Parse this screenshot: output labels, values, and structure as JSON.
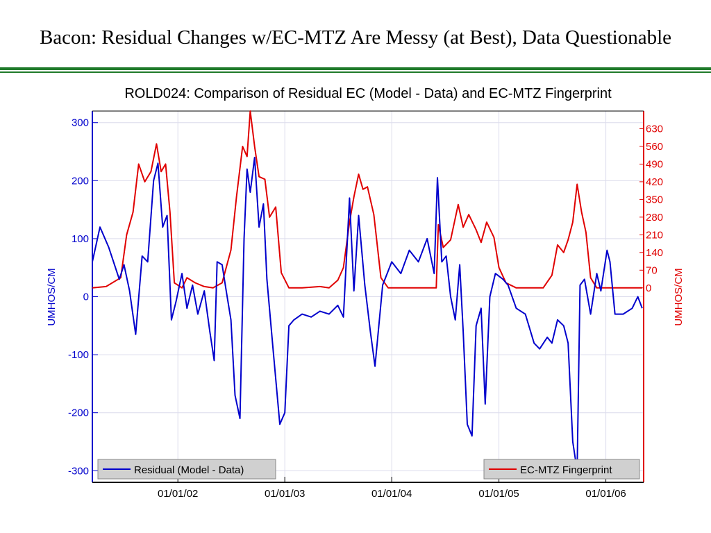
{
  "slide": {
    "title": "Bacon: Residual Changes w/EC-MTZ Are Messy (at Best), Data Questionable"
  },
  "chart_data": {
    "type": "line",
    "title": "ROLD024: Comparison of Residual EC (Model - Data) and EC-MTZ Fingerprint",
    "grid": true,
    "xlabel": "",
    "x_tick_labels": [
      "01/01/02",
      "01/01/03",
      "01/01/04",
      "01/01/05",
      "01/01/06"
    ],
    "xlim": [
      "2001-03-15",
      "2006-05-10"
    ],
    "left_axis": {
      "label": "UMHOS/CM",
      "color": "#0000cc",
      "ylim": [
        -320,
        320
      ],
      "ticks": [
        300,
        200,
        100,
        0,
        -100,
        -200,
        -300
      ]
    },
    "right_axis": {
      "label": "UMHOS/CM",
      "color": "#e00000",
      "ylim": [
        -770,
        700
      ],
      "ticks": [
        630,
        560,
        490,
        420,
        350,
        280,
        210,
        140,
        70,
        0
      ]
    },
    "legend": [
      {
        "label": "Residual (Model - Data)",
        "position": "bottom-left",
        "color": "#0000cc"
      },
      {
        "label": "EC-MTZ Fingerprint",
        "position": "bottom-right",
        "color": "#e00000"
      }
    ],
    "series": [
      {
        "name": "Residual (Model - Data)",
        "axis": "left",
        "color": "#0000cc",
        "points": [
          [
            "2001-03-15",
            60
          ],
          [
            "2001-04-10",
            120
          ],
          [
            "2001-05-10",
            85
          ],
          [
            "2001-06-15",
            30
          ],
          [
            "2001-07-01",
            55
          ],
          [
            "2001-07-20",
            10
          ],
          [
            "2001-08-10",
            -65
          ],
          [
            "2001-09-01",
            70
          ],
          [
            "2001-09-20",
            60
          ],
          [
            "2001-10-10",
            200
          ],
          [
            "2001-10-25",
            230
          ],
          [
            "2001-11-10",
            120
          ],
          [
            "2001-11-25",
            140
          ],
          [
            "2001-12-10",
            -40
          ],
          [
            "2001-12-25",
            -10
          ],
          [
            "2002-01-15",
            40
          ],
          [
            "2002-02-01",
            -20
          ],
          [
            "2002-02-20",
            20
          ],
          [
            "2002-03-10",
            -30
          ],
          [
            "2002-04-01",
            10
          ],
          [
            "2002-04-20",
            -60
          ],
          [
            "2002-05-05",
            -110
          ],
          [
            "2002-05-15",
            60
          ],
          [
            "2002-06-01",
            55
          ],
          [
            "2002-06-15",
            10
          ],
          [
            "2002-07-01",
            -40
          ],
          [
            "2002-07-15",
            -170
          ],
          [
            "2002-08-01",
            -210
          ],
          [
            "2002-08-15",
            100
          ],
          [
            "2002-08-25",
            220
          ],
          [
            "2002-09-05",
            180
          ],
          [
            "2002-09-20",
            240
          ],
          [
            "2002-10-05",
            120
          ],
          [
            "2002-10-20",
            160
          ],
          [
            "2002-11-01",
            30
          ],
          [
            "2002-11-20",
            -80
          ],
          [
            "2002-12-15",
            -220
          ],
          [
            "2003-01-01",
            -200
          ],
          [
            "2003-01-15",
            -50
          ],
          [
            "2003-02-01",
            -40
          ],
          [
            "2003-03-01",
            -30
          ],
          [
            "2003-04-01",
            -35
          ],
          [
            "2003-05-01",
            -25
          ],
          [
            "2003-06-01",
            -30
          ],
          [
            "2003-07-01",
            -15
          ],
          [
            "2003-07-20",
            -35
          ],
          [
            "2003-08-10",
            170
          ],
          [
            "2003-08-25",
            10
          ],
          [
            "2003-09-10",
            140
          ],
          [
            "2003-10-01",
            20
          ],
          [
            "2003-10-20",
            -60
          ],
          [
            "2003-11-05",
            -120
          ],
          [
            "2003-12-01",
            20
          ],
          [
            "2004-01-01",
            60
          ],
          [
            "2004-02-01",
            40
          ],
          [
            "2004-03-01",
            80
          ],
          [
            "2004-04-01",
            60
          ],
          [
            "2004-05-01",
            100
          ],
          [
            "2004-05-25",
            40
          ],
          [
            "2004-06-05",
            205
          ],
          [
            "2004-06-20",
            60
          ],
          [
            "2004-07-05",
            70
          ],
          [
            "2004-07-20",
            0
          ],
          [
            "2004-08-05",
            -40
          ],
          [
            "2004-08-20",
            55
          ],
          [
            "2004-09-01",
            -60
          ],
          [
            "2004-09-15",
            -220
          ],
          [
            "2004-10-01",
            -240
          ],
          [
            "2004-10-15",
            -50
          ],
          [
            "2004-11-01",
            -20
          ],
          [
            "2004-11-15",
            -185
          ],
          [
            "2004-12-01",
            0
          ],
          [
            "2004-12-20",
            40
          ],
          [
            "2005-01-15",
            30
          ],
          [
            "2005-02-01",
            20
          ],
          [
            "2005-03-01",
            -20
          ],
          [
            "2005-04-01",
            -30
          ],
          [
            "2005-05-01",
            -80
          ],
          [
            "2005-05-20",
            -90
          ],
          [
            "2005-06-15",
            -70
          ],
          [
            "2005-07-01",
            -80
          ],
          [
            "2005-07-20",
            -40
          ],
          [
            "2005-08-10",
            -50
          ],
          [
            "2005-08-25",
            -80
          ],
          [
            "2005-09-10",
            -250
          ],
          [
            "2005-09-25",
            -300
          ],
          [
            "2005-10-05",
            20
          ],
          [
            "2005-10-20",
            30
          ],
          [
            "2005-11-10",
            -30
          ],
          [
            "2005-12-01",
            40
          ],
          [
            "2005-12-15",
            10
          ],
          [
            "2006-01-05",
            80
          ],
          [
            "2006-01-15",
            60
          ],
          [
            "2006-02-01",
            -30
          ],
          [
            "2006-03-01",
            -30
          ],
          [
            "2006-04-01",
            -20
          ],
          [
            "2006-04-20",
            0
          ],
          [
            "2006-05-05",
            -20
          ]
        ]
      },
      {
        "name": "EC-MTZ Fingerprint",
        "axis": "right",
        "color": "#e00000",
        "points": [
          [
            "2001-03-15",
            0
          ],
          [
            "2001-05-01",
            5
          ],
          [
            "2001-06-20",
            40
          ],
          [
            "2001-07-10",
            210
          ],
          [
            "2001-08-01",
            300
          ],
          [
            "2001-08-20",
            490
          ],
          [
            "2001-09-10",
            420
          ],
          [
            "2001-10-01",
            460
          ],
          [
            "2001-10-20",
            570
          ],
          [
            "2001-11-05",
            460
          ],
          [
            "2001-11-20",
            490
          ],
          [
            "2001-12-05",
            300
          ],
          [
            "2001-12-20",
            20
          ],
          [
            "2002-01-15",
            0
          ],
          [
            "2002-02-01",
            40
          ],
          [
            "2002-03-01",
            20
          ],
          [
            "2002-04-01",
            5
          ],
          [
            "2002-05-01",
            0
          ],
          [
            "2002-06-01",
            20
          ],
          [
            "2002-07-01",
            150
          ],
          [
            "2002-07-20",
            360
          ],
          [
            "2002-08-10",
            560
          ],
          [
            "2002-08-25",
            520
          ],
          [
            "2002-09-05",
            700
          ],
          [
            "2002-09-20",
            560
          ],
          [
            "2002-10-05",
            440
          ],
          [
            "2002-10-25",
            430
          ],
          [
            "2002-11-10",
            280
          ],
          [
            "2002-12-01",
            320
          ],
          [
            "2002-12-20",
            60
          ],
          [
            "2003-01-15",
            0
          ],
          [
            "2003-03-01",
            0
          ],
          [
            "2003-05-01",
            5
          ],
          [
            "2003-06-01",
            0
          ],
          [
            "2003-07-01",
            30
          ],
          [
            "2003-07-20",
            80
          ],
          [
            "2003-08-10",
            260
          ],
          [
            "2003-08-25",
            360
          ],
          [
            "2003-09-10",
            450
          ],
          [
            "2003-09-25",
            390
          ],
          [
            "2003-10-10",
            400
          ],
          [
            "2003-11-01",
            290
          ],
          [
            "2003-11-25",
            40
          ],
          [
            "2003-12-20",
            0
          ],
          [
            "2004-03-01",
            0
          ],
          [
            "2004-05-01",
            0
          ],
          [
            "2004-06-01",
            0
          ],
          [
            "2004-06-08",
            250
          ],
          [
            "2004-06-25",
            160
          ],
          [
            "2004-07-20",
            190
          ],
          [
            "2004-08-15",
            330
          ],
          [
            "2004-09-01",
            240
          ],
          [
            "2004-09-20",
            290
          ],
          [
            "2004-10-15",
            230
          ],
          [
            "2004-11-01",
            180
          ],
          [
            "2004-11-20",
            260
          ],
          [
            "2004-12-15",
            200
          ],
          [
            "2005-01-01",
            80
          ],
          [
            "2005-01-25",
            20
          ],
          [
            "2005-03-01",
            0
          ],
          [
            "2005-05-01",
            0
          ],
          [
            "2005-06-01",
            0
          ],
          [
            "2005-07-01",
            50
          ],
          [
            "2005-07-20",
            170
          ],
          [
            "2005-08-10",
            140
          ],
          [
            "2005-08-25",
            190
          ],
          [
            "2005-09-10",
            260
          ],
          [
            "2005-09-25",
            410
          ],
          [
            "2005-10-10",
            300
          ],
          [
            "2005-10-25",
            220
          ],
          [
            "2005-11-10",
            40
          ],
          [
            "2005-12-01",
            0
          ],
          [
            "2006-01-01",
            0
          ],
          [
            "2006-03-01",
            0
          ],
          [
            "2006-05-05",
            0
          ]
        ]
      }
    ]
  }
}
